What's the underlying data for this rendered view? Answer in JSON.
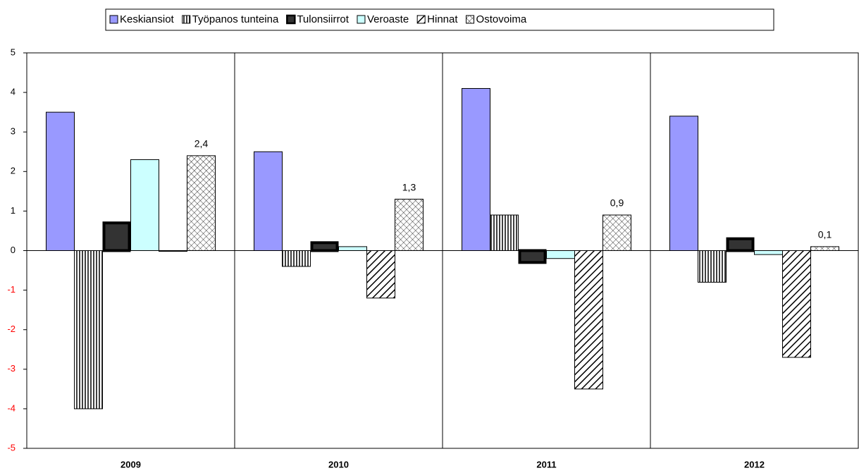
{
  "chart_data": {
    "type": "bar",
    "categories": [
      "2009",
      "2010",
      "2011",
      "2012"
    ],
    "series": [
      {
        "name": "Keskiansiot",
        "color": "#9999ff",
        "pattern": "solid",
        "values": [
          3.5,
          2.5,
          4.1,
          3.4
        ]
      },
      {
        "name": "Työpanos tunteina",
        "color": "#000000",
        "pattern": "vertical",
        "values": [
          -4.0,
          -0.4,
          0.9,
          -0.8
        ]
      },
      {
        "name": "Tulonsiirrot",
        "color": "#333333",
        "pattern": "thick-border",
        "values": [
          0.7,
          0.2,
          -0.3,
          0.3
        ]
      },
      {
        "name": "Veroaste",
        "color": "#ccffff",
        "pattern": "solid",
        "values": [
          2.3,
          0.1,
          -0.2,
          -0.1
        ]
      },
      {
        "name": "Hinnat",
        "color": "#000000",
        "pattern": "diagonal",
        "values": [
          0,
          -1.2,
          -3.5,
          -2.7
        ]
      },
      {
        "name": "Ostovoima",
        "color": "#000000",
        "pattern": "crosshatch",
        "values": [
          2.4,
          1.3,
          0.9,
          0.1
        ],
        "value_labels": [
          "2,4",
          "1,3",
          "0,9",
          "0,1"
        ]
      }
    ],
    "ylim": [
      -5,
      5
    ],
    "yticks": [
      -5,
      -4,
      -3,
      -2,
      -1,
      0,
      1,
      2,
      3,
      4,
      5
    ],
    "negative_tick_color": "#ff0000",
    "legend": "top"
  }
}
